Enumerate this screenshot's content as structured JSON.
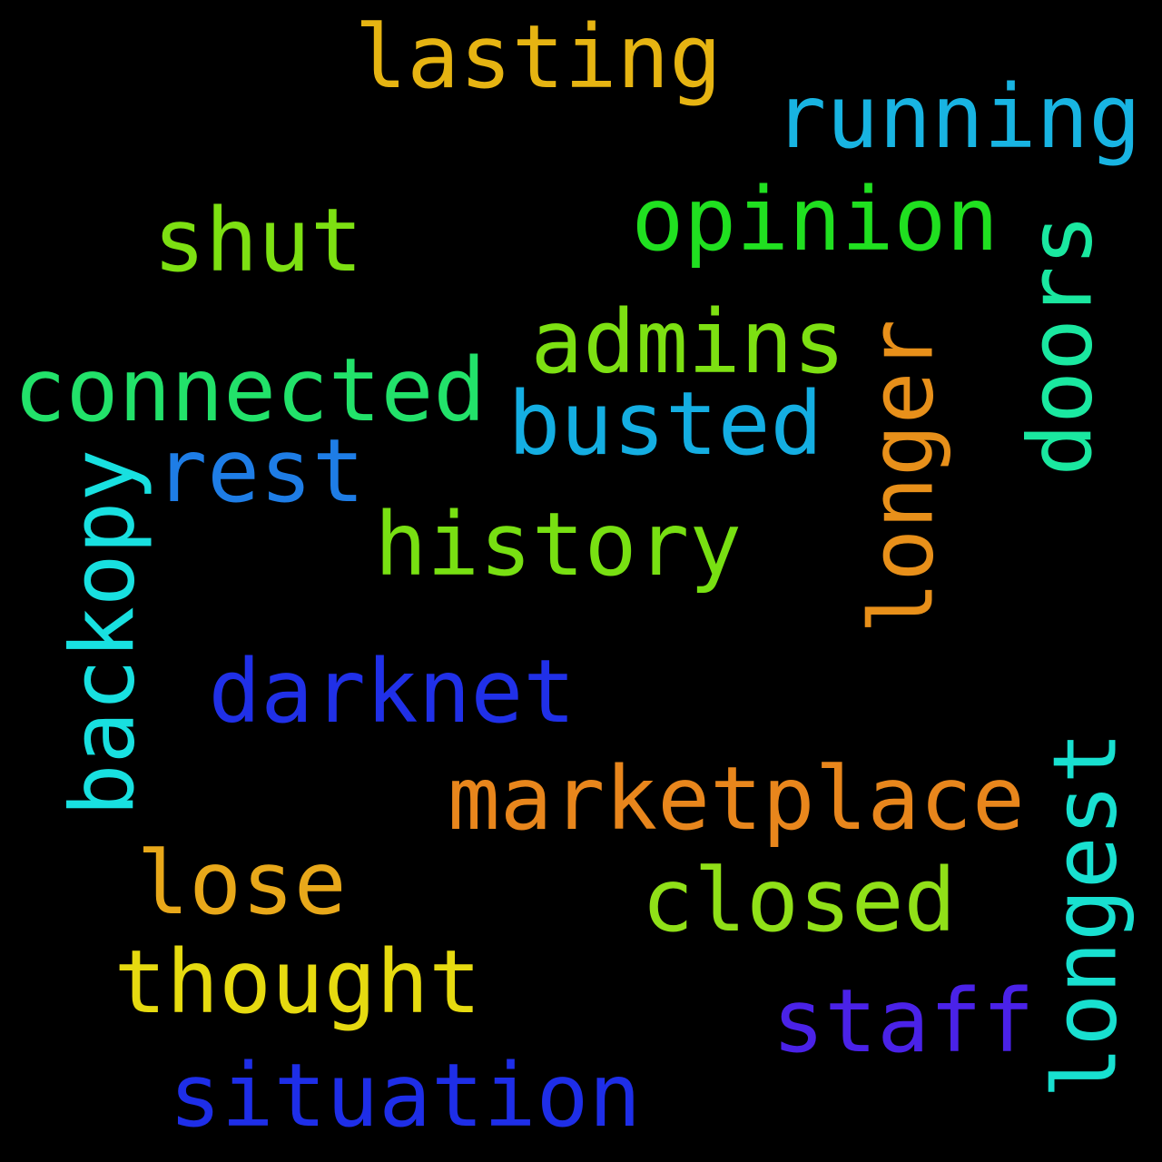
{
  "background_color": "#000000",
  "words": [
    {
      "text": "lasting",
      "color": "#E6B412",
      "orientation": "horizontal"
    },
    {
      "text": "running",
      "color": "#18B4E2",
      "orientation": "horizontal"
    },
    {
      "text": "opinion",
      "color": "#20E020",
      "orientation": "horizontal"
    },
    {
      "text": "shut",
      "color": "#7DE012",
      "orientation": "horizontal"
    },
    {
      "text": "doors",
      "color": "#1AE8A0",
      "orientation": "vertical"
    },
    {
      "text": "admins",
      "color": "#7DE012",
      "orientation": "horizontal"
    },
    {
      "text": "longer",
      "color": "#E8901A",
      "orientation": "vertical"
    },
    {
      "text": "connected",
      "color": "#22E26A",
      "orientation": "horizontal"
    },
    {
      "text": "busted",
      "color": "#14AEE2",
      "orientation": "horizontal"
    },
    {
      "text": "rest",
      "color": "#1E7DE6",
      "orientation": "horizontal"
    },
    {
      "text": "backopy",
      "color": "#18E0E0",
      "orientation": "vertical"
    },
    {
      "text": "history",
      "color": "#78E012",
      "orientation": "horizontal"
    },
    {
      "text": "darknet",
      "color": "#2030E8",
      "orientation": "horizontal"
    },
    {
      "text": "marketplace",
      "color": "#E8861C",
      "orientation": "horizontal"
    },
    {
      "text": "longest",
      "color": "#18E0D0",
      "orientation": "vertical"
    },
    {
      "text": "lose",
      "color": "#E8A81A",
      "orientation": "horizontal"
    },
    {
      "text": "closed",
      "color": "#90E018",
      "orientation": "horizontal"
    },
    {
      "text": "thought",
      "color": "#E6DA10",
      "orientation": "horizontal"
    },
    {
      "text": "staff",
      "color": "#4A22E8",
      "orientation": "horizontal"
    },
    {
      "text": "situation",
      "color": "#1E2EE8",
      "orientation": "horizontal"
    }
  ]
}
